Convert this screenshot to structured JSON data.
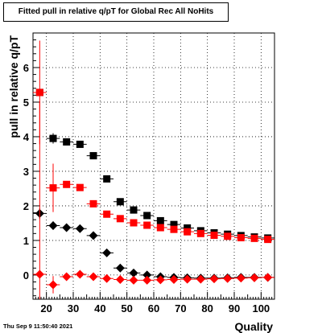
{
  "timestamp": "Thu Sep  9 11:50:40 2021",
  "chart_data": {
    "type": "scatter",
    "title": "Fitted pull in relative q/pT for Global Rec All NoHits",
    "xlabel": "Quality",
    "ylabel": "pull in relative q/pT",
    "xlim": [
      15,
      105
    ],
    "ylim": [
      -0.7,
      7.0
    ],
    "x_ticks": [
      20,
      30,
      40,
      50,
      60,
      70,
      80,
      90,
      100
    ],
    "y_ticks": [
      0,
      1,
      2,
      3,
      4,
      5,
      6
    ],
    "grid": true,
    "x": [
      17.5,
      22.5,
      27.5,
      32.5,
      37.5,
      42.5,
      47.5,
      52.5,
      57.5,
      62.5,
      67.5,
      72.5,
      77.5,
      82.5,
      87.5,
      92.5,
      97.5,
      102.5
    ],
    "series": [
      {
        "marker": "square",
        "color": "#000000",
        "values": [
          5.28,
          3.95,
          3.85,
          3.78,
          3.45,
          2.78,
          2.12,
          1.88,
          1.72,
          1.57,
          1.46,
          1.36,
          1.28,
          1.22,
          1.18,
          1.14,
          1.1,
          1.07
        ],
        "errors": [
          0,
          0.15,
          0.06,
          0.06,
          0.06,
          0.05,
          0.04,
          0.04,
          0.04,
          0.04,
          0.03,
          0.03,
          0.03,
          0.03,
          0.03,
          0.03,
          0.03,
          0.03
        ]
      },
      {
        "marker": "square",
        "color": "#ff0000",
        "values": [
          5.28,
          2.52,
          2.62,
          2.53,
          2.06,
          1.76,
          1.63,
          1.51,
          1.44,
          1.37,
          1.32,
          1.25,
          1.2,
          1.15,
          1.12,
          1.08,
          1.06,
          1.03
        ],
        "errors": [
          1.5,
          0.7,
          0.1,
          0.06,
          0.06,
          0.05,
          0.04,
          0.04,
          0.04,
          0.03,
          0.03,
          0.03,
          0.03,
          0.03,
          0.03,
          0.03,
          0.03,
          0.03
        ]
      },
      {
        "marker": "diamond",
        "color": "#000000",
        "values": [
          1.78,
          1.43,
          1.37,
          1.34,
          1.14,
          0.64,
          0.2,
          0.06,
          0.0,
          -0.05,
          -0.07,
          -0.08,
          -0.09,
          -0.09,
          -0.08,
          -0.07,
          -0.07,
          -0.07
        ],
        "errors": [
          0.15,
          0.12,
          0.05,
          0.05,
          0.04,
          0.03,
          0.03,
          0.02,
          0.02,
          0.02,
          0.02,
          0.02,
          0.02,
          0.02,
          0.02,
          0.02,
          0.02,
          0.02
        ]
      },
      {
        "marker": "diamond",
        "color": "#ff0000",
        "values": [
          0.02,
          -0.28,
          -0.05,
          0.02,
          -0.05,
          -0.1,
          -0.13,
          -0.15,
          -0.15,
          -0.14,
          -0.13,
          -0.12,
          -0.12,
          -0.11,
          -0.1,
          -0.09,
          -0.08,
          -0.07
        ],
        "errors": [
          5.0,
          0.25,
          0.05,
          0.05,
          0.04,
          0.04,
          0.03,
          0.03,
          0.03,
          0.03,
          0.03,
          0.03,
          0.03,
          0.03,
          0.03,
          0.03,
          0.03,
          0.03
        ]
      }
    ]
  }
}
